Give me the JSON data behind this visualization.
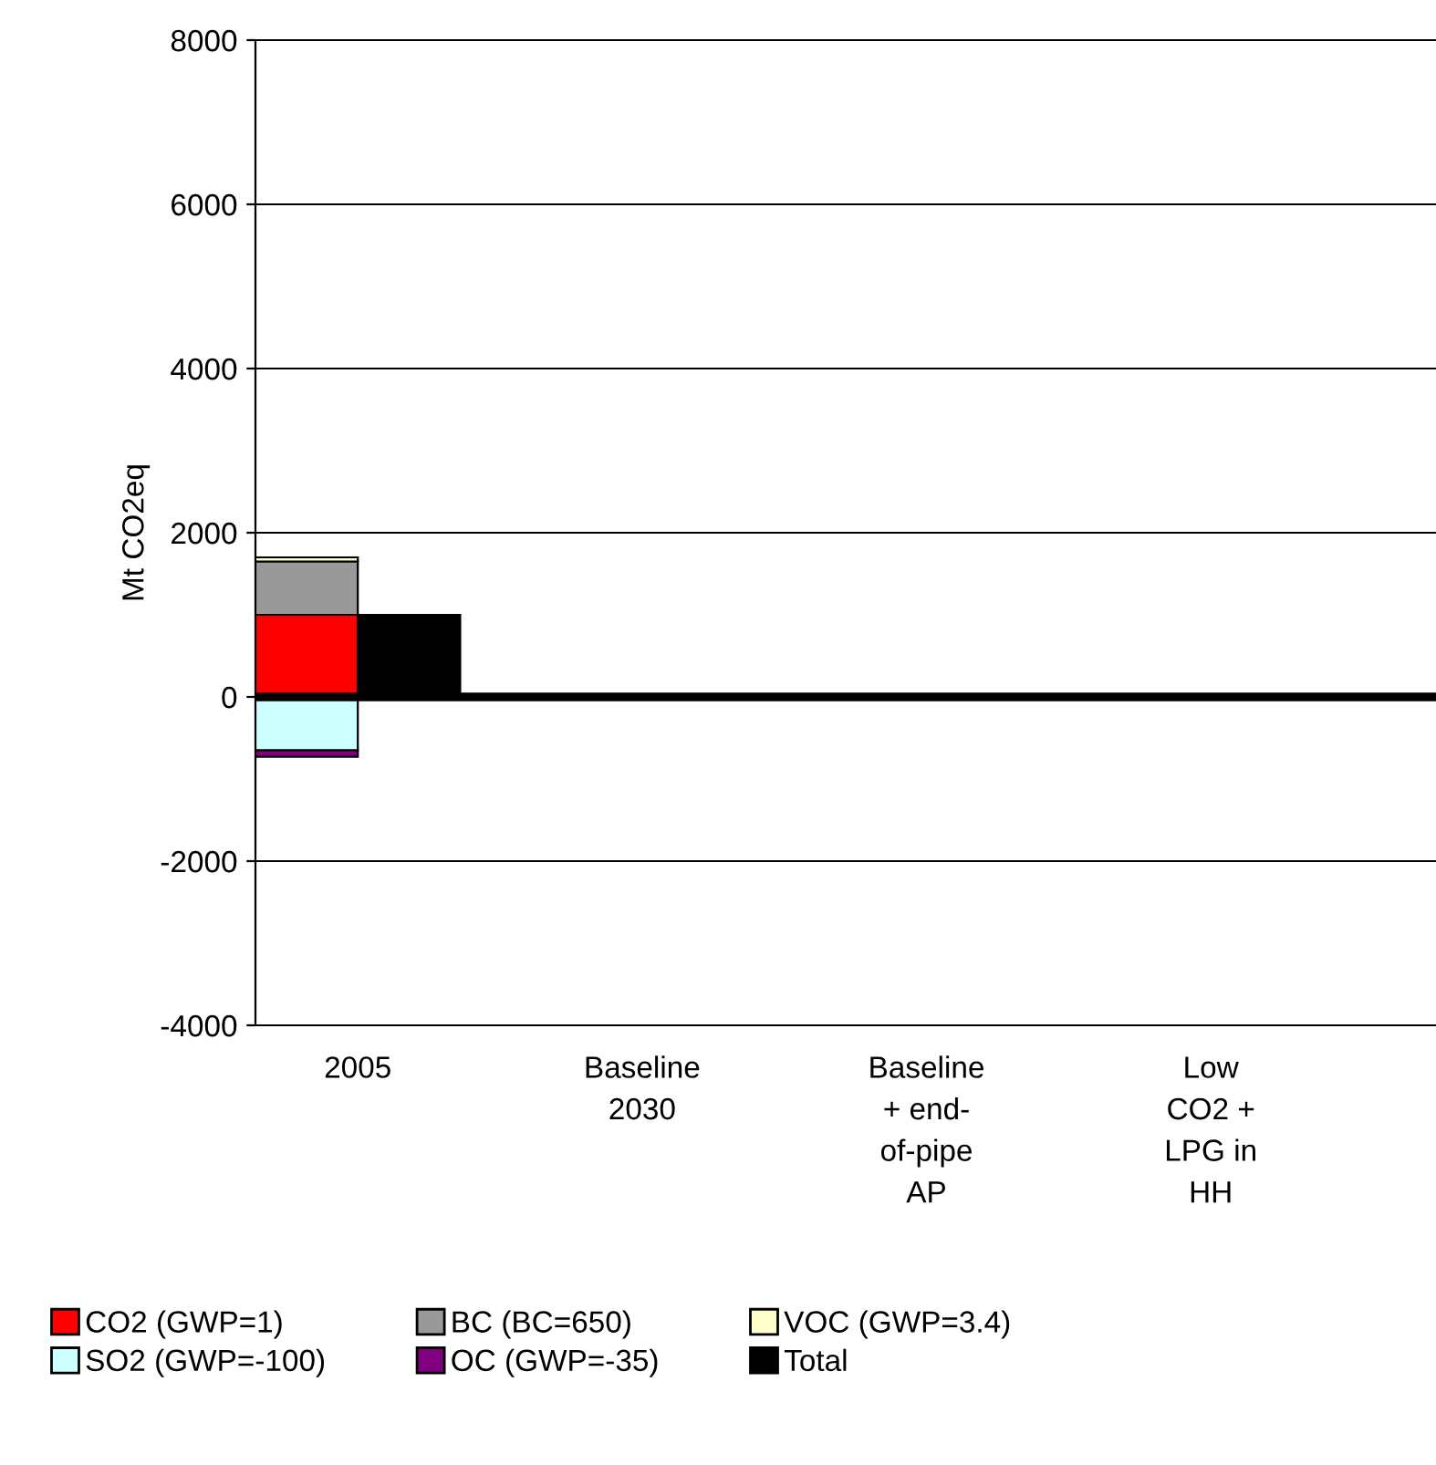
{
  "chart_data": {
    "type": "bar",
    "ylabel": "Mt CO2eq",
    "categories": [
      "2005",
      "Baseline\n2030",
      "Baseline\n+ end-\nof-pipe\nAP",
      "Low\nCO2 +\nLPG in\nHH"
    ],
    "series": [
      {
        "name": "CO2 (GWP=1)",
        "color": "#ff0000",
        "values": [
          1000,
          null,
          null,
          null
        ],
        "base": [
          0,
          null,
          null,
          null
        ]
      },
      {
        "name": "BC (BC=650)",
        "color": "#999999",
        "values": [
          650,
          null,
          null,
          null
        ],
        "base": [
          1000,
          null,
          null,
          null
        ]
      },
      {
        "name": "VOC (GWP=3.4)",
        "color": "#ffffcc",
        "values": [
          50,
          null,
          null,
          null
        ],
        "base": [
          1650,
          null,
          null,
          null
        ]
      },
      {
        "name": "SO2 (GWP=-100)",
        "color": "#ccffff",
        "values": [
          -650,
          null,
          null,
          null
        ],
        "base": [
          0,
          null,
          null,
          null
        ]
      },
      {
        "name": "OC (GWP=-35)",
        "color": "#800080",
        "values": [
          -80,
          null,
          null,
          null
        ],
        "base": [
          -650,
          null,
          null,
          null
        ]
      },
      {
        "name": "Total",
        "color": "#000000",
        "values": [
          1000,
          null,
          null,
          null
        ]
      }
    ],
    "ylim": [
      -4000,
      8000
    ],
    "yticks": [
      -4000,
      -2000,
      0,
      2000,
      4000,
      6000,
      8000
    ],
    "grid": "y",
    "legend": "bottom"
  }
}
